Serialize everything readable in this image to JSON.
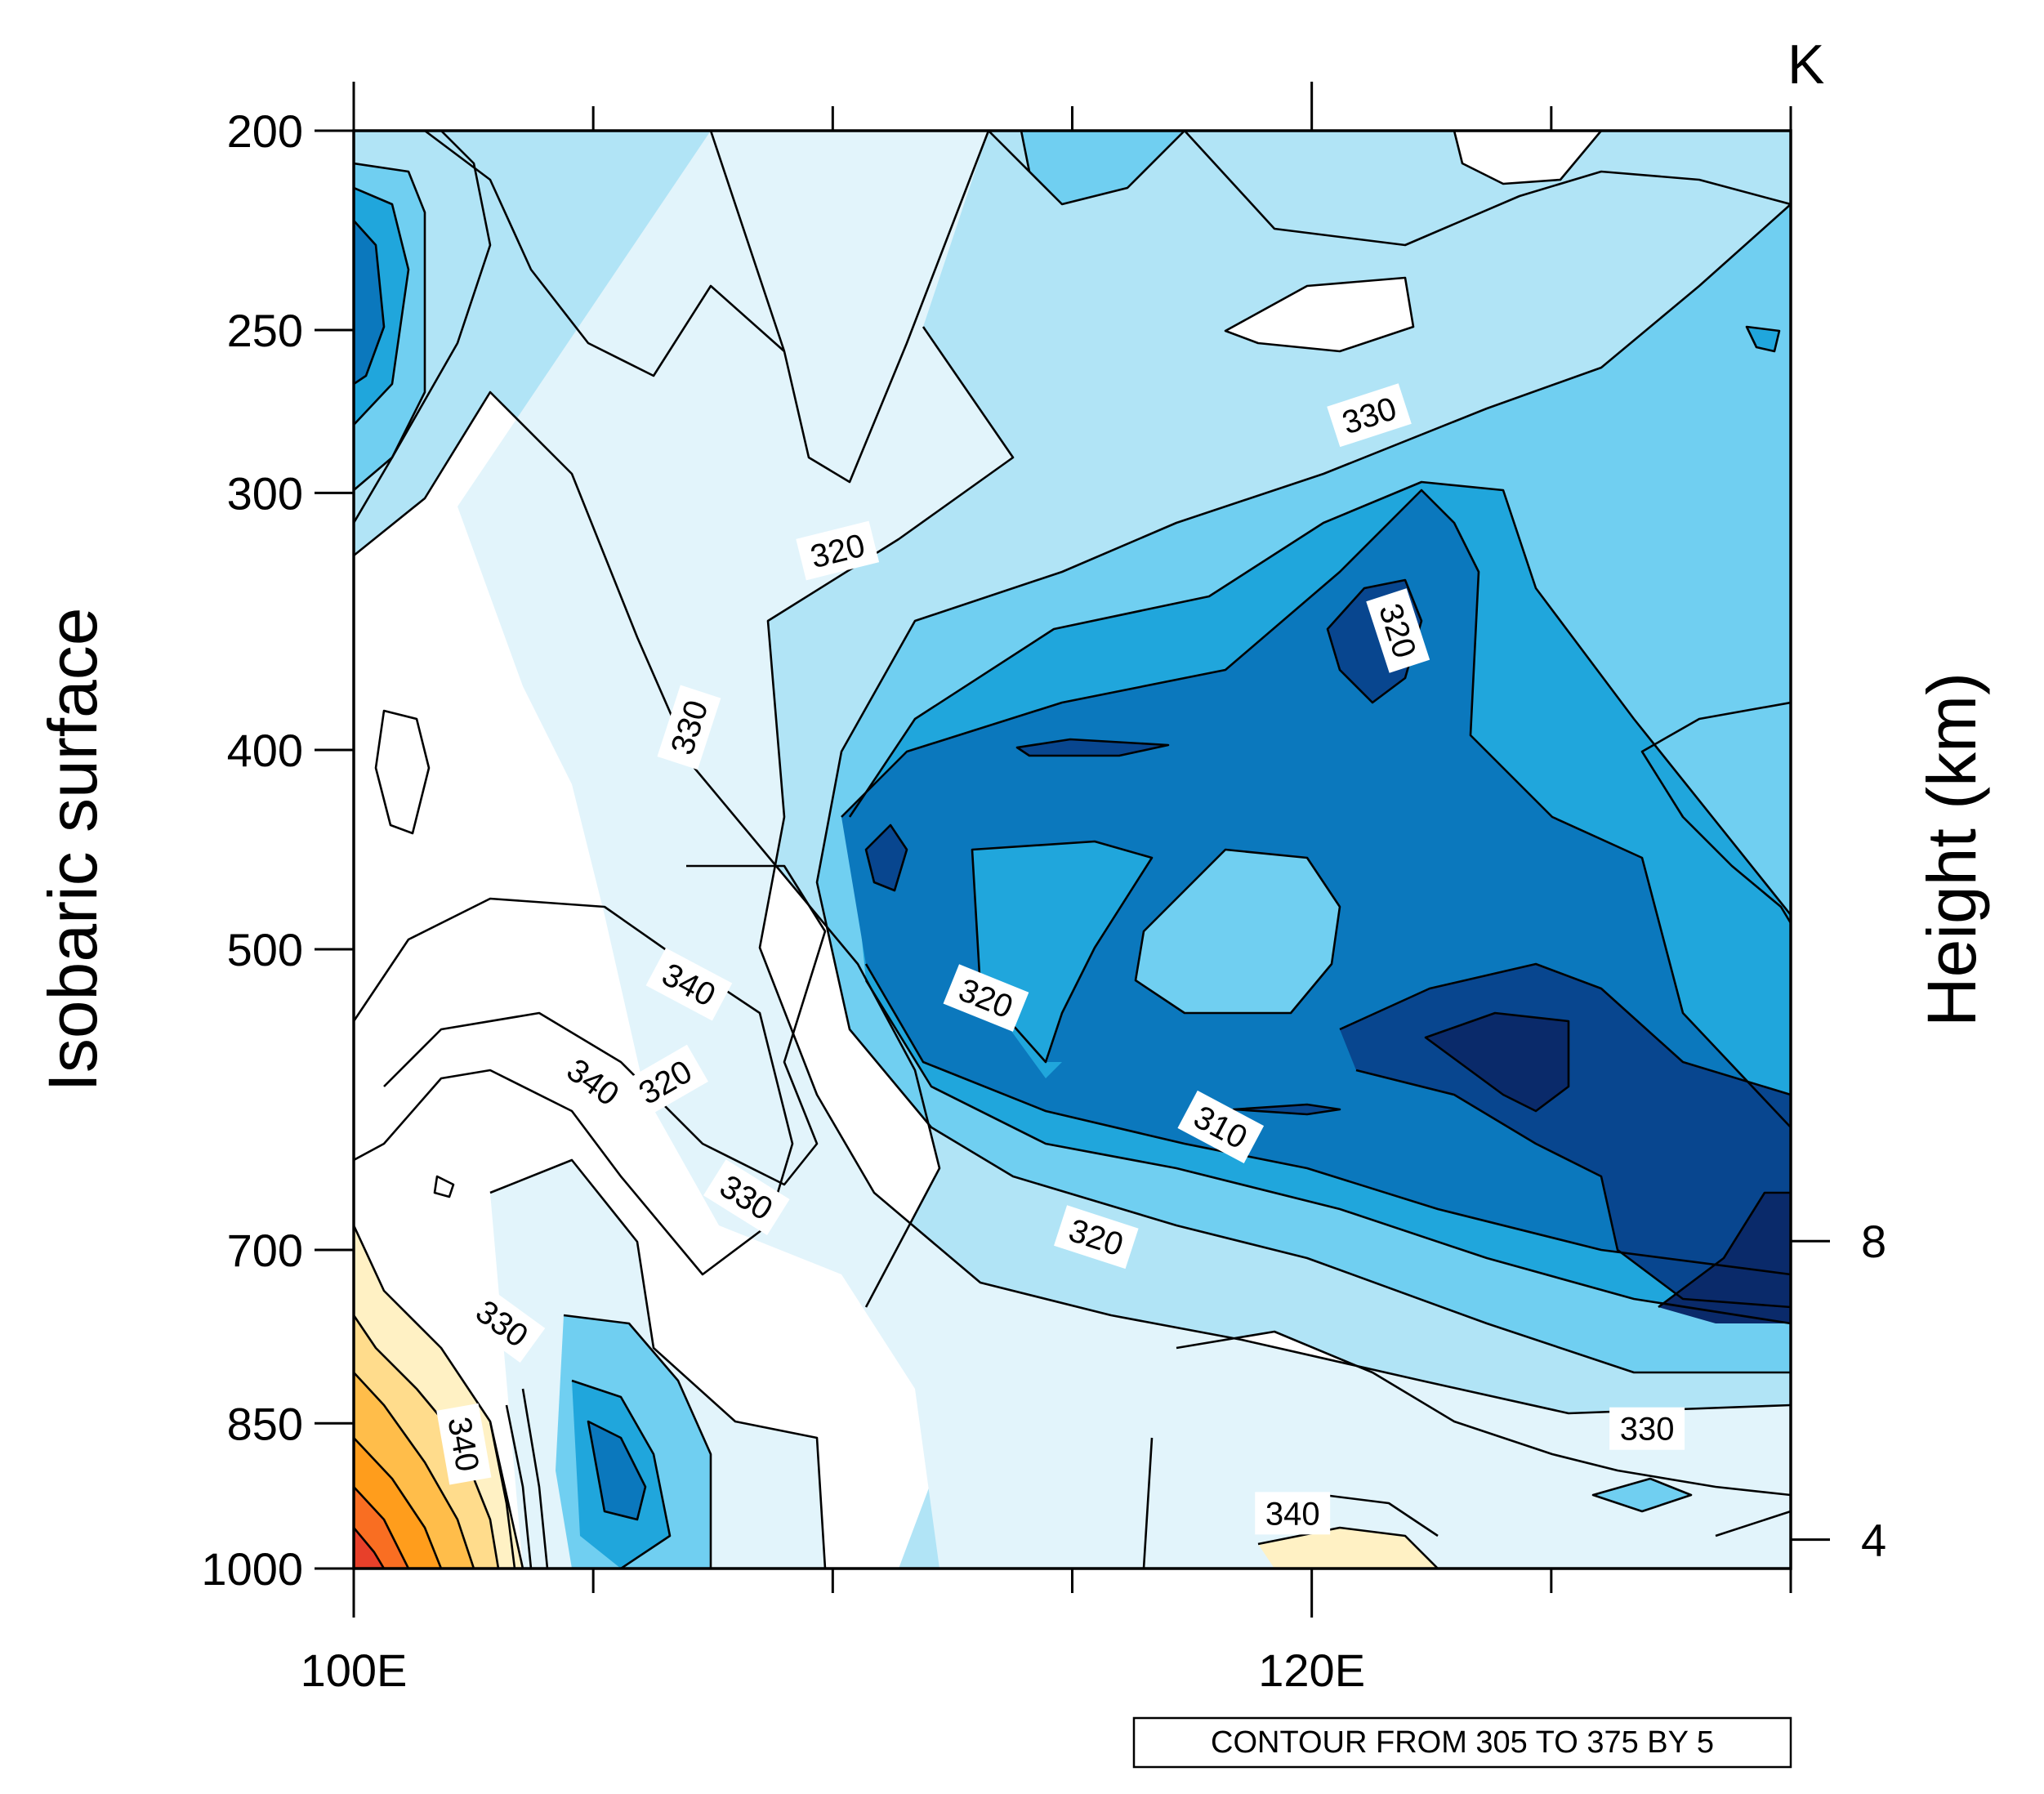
{
  "chart_data": {
    "type": "contour",
    "variable": "equivalent potential temperature",
    "units_label": "K",
    "title": "",
    "xlabel": "",
    "ylabel_left": "Isobaric surface",
    "ylabel_right": "Height (km)",
    "x_range_deg_east": [
      100,
      130
    ],
    "x_tick_labels": [
      "100E",
      "120E"
    ],
    "y_left_range_hpa": [
      1000,
      200
    ],
    "y_left_ticks": [
      1000,
      850,
      700,
      500,
      400,
      300,
      250,
      200
    ],
    "y_left_tick_labels": [
      "1000",
      "850",
      "700",
      "500",
      "400",
      "300",
      "250",
      "200"
    ],
    "y_right_ticks_km": [
      4,
      8
    ],
    "y_right_tick_labels": [
      "4",
      "8"
    ],
    "contour_levels": {
      "min": 305,
      "max": 375,
      "step": 5
    },
    "contour_info": "CONTOUR FROM 305 TO 375 BY 5",
    "fill_colors": {
      "lt310": "#0a2a6a",
      "310_315": "#08468f",
      "315_320": "#0b78bd",
      "320_325": "#20a6dc",
      "325_330": "#70cff1",
      "330_335": "#b1e4f6",
      "335_340": "#e2f4fb",
      "340_345": "#ffffff",
      "345_350": "#fff1c4",
      "350_355": "#ffdc8c",
      "355_360": "#ffbd4a",
      "360_365": "#ff9d1c",
      "365_370": "#f96e22",
      "370_375": "#e8402a",
      "gt375": "#c8161d"
    },
    "contour_line_labels": [
      {
        "value": "330",
        "lon": 121.2,
        "p": 275
      },
      {
        "value": "320",
        "lon": 121.8,
        "p": 350
      },
      {
        "value": "320",
        "lon": 110.1,
        "p": 320
      },
      {
        "value": "330",
        "lon": 107.0,
        "p": 390
      },
      {
        "value": "340",
        "lon": 107.0,
        "p": 520
      },
      {
        "value": "340",
        "lon": 105.0,
        "p": 580
      },
      {
        "value": "320",
        "lon": 106.5,
        "p": 580
      },
      {
        "value": "320",
        "lon": 113.2,
        "p": 528
      },
      {
        "value": "310",
        "lon": 118.1,
        "p": 610
      },
      {
        "value": "330",
        "lon": 108.2,
        "p": 660
      },
      {
        "value": "320",
        "lon": 115.5,
        "p": 690
      },
      {
        "value": "330",
        "lon": 103.1,
        "p": 760
      },
      {
        "value": "340",
        "lon": 102.3,
        "p": 870
      },
      {
        "value": "330",
        "lon": 127.0,
        "p": 855
      },
      {
        "value": "340",
        "lon": 119.6,
        "p": 940
      }
    ]
  }
}
